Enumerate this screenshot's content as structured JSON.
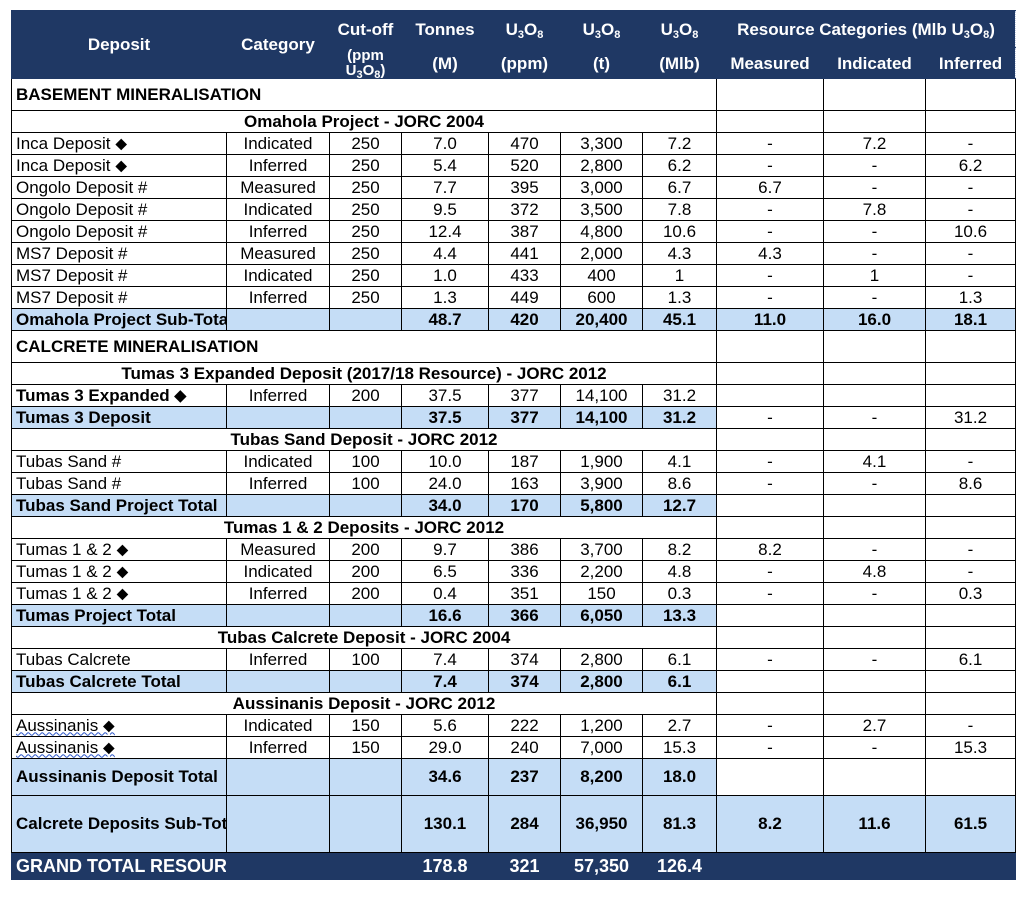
{
  "header": {
    "deposit": "Deposit",
    "category": "Category",
    "cutoff_top": "Cut-off",
    "cutoff_bottom": "(ppm U3O8)",
    "tonnes_top": "Tonnes",
    "tonnes_bottom": "(M)",
    "u3o8_a_top": "U3O8",
    "u3o8_a_bottom": "(ppm)",
    "u3o8_b_top": "U3O8",
    "u3o8_b_bottom": "(t)",
    "u3o8_c_top": "U3O8",
    "u3o8_c_bottom": "(Mlb)",
    "resource_categories": "Resource Categories (Mlb U3O8)",
    "measured": "Measured",
    "indicated": "Indicated",
    "inferred": "Inferred"
  },
  "rows": [
    {
      "type": "section",
      "label": "BASEMENT MINERALISATION"
    },
    {
      "type": "project",
      "label": "Omahola Project - JORC 2004"
    },
    {
      "type": "data",
      "deposit": "Inca Deposit ⬥",
      "category": "Indicated",
      "cutoff": "250",
      "tonnes": "7.0",
      "ppm": "470",
      "t": "3,300",
      "mlb": "7.2",
      "measured": "-",
      "indicated": "7.2",
      "inferred": "-"
    },
    {
      "type": "data",
      "deposit": "Inca Deposit ⬥",
      "category": "Inferred",
      "cutoff": "250",
      "tonnes": "5.4",
      "ppm": "520",
      "t": "2,800",
      "mlb": "6.2",
      "measured": "-",
      "indicated": "-",
      "inferred": "6.2"
    },
    {
      "type": "data",
      "deposit": "Ongolo Deposit #",
      "category": "Measured",
      "cutoff": "250",
      "tonnes": "7.7",
      "ppm": "395",
      "t": "3,000",
      "mlb": "6.7",
      "measured": "6.7",
      "indicated": "-",
      "inferred": "-"
    },
    {
      "type": "data",
      "deposit": "Ongolo Deposit #",
      "category": "Indicated",
      "cutoff": "250",
      "tonnes": "9.5",
      "ppm": "372",
      "t": "3,500",
      "mlb": "7.8",
      "measured": "-",
      "indicated": "7.8",
      "inferred": "-"
    },
    {
      "type": "data",
      "deposit": "Ongolo Deposit #",
      "category": "Inferred",
      "cutoff": "250",
      "tonnes": "12.4",
      "ppm": "387",
      "t": "4,800",
      "mlb": "10.6",
      "measured": "-",
      "indicated": "-",
      "inferred": "10.6"
    },
    {
      "type": "data",
      "deposit": "MS7 Deposit #",
      "category": "Measured",
      "cutoff": "250",
      "tonnes": "4.4",
      "ppm": "441",
      "t": "2,000",
      "mlb": "4.3",
      "measured": "4.3",
      "indicated": "-",
      "inferred": "-"
    },
    {
      "type": "data",
      "deposit": "MS7 Deposit #",
      "category": "Indicated",
      "cutoff": "250",
      "tonnes": "1.0",
      "ppm": "433",
      "t": "400",
      "mlb": "1",
      "measured": "-",
      "indicated": "1",
      "inferred": "-"
    },
    {
      "type": "data",
      "deposit": "MS7 Deposit #",
      "category": "Inferred",
      "cutoff": "250",
      "tonnes": "1.3",
      "ppm": "449",
      "t": "600",
      "mlb": "1.3",
      "measured": "-",
      "indicated": "-",
      "inferred": "1.3"
    },
    {
      "type": "subtotal",
      "label": "Omahola Project Sub-Total",
      "tonnes": "48.7",
      "ppm": "420",
      "t": "20,400",
      "mlb": "45.1",
      "measured": "11.0",
      "indicated": "16.0",
      "inferred": "18.1",
      "shade_cats": true
    },
    {
      "type": "section",
      "label": "CALCRETE MINERALISATION"
    },
    {
      "type": "project",
      "label": "Tumas 3 Expanded Deposit (2017/18 Resource) - JORC 2012"
    },
    {
      "type": "data",
      "deposit": "Tumas 3 Expanded ⬥",
      "category": "Inferred",
      "cutoff": "200",
      "tonnes": "37.5",
      "ppm": "377",
      "t": "14,100",
      "mlb": "31.2",
      "measured": "",
      "indicated": "",
      "inferred": "",
      "bold_deposit": true
    },
    {
      "type": "subtotal",
      "label": "Tumas 3 Deposit",
      "tonnes": "37.5",
      "ppm": "377",
      "t": "14,100",
      "mlb": "31.2",
      "measured": "-",
      "indicated": "-",
      "inferred": "31.2",
      "shade_cats": false
    },
    {
      "type": "project",
      "label": "Tubas Sand Deposit - JORC 2012"
    },
    {
      "type": "data",
      "deposit": "Tubas Sand #",
      "category": "Indicated",
      "cutoff": "100",
      "tonnes": "10.0",
      "ppm": "187",
      "t": "1,900",
      "mlb": "4.1",
      "measured": "-",
      "indicated": "4.1",
      "inferred": "-"
    },
    {
      "type": "data",
      "deposit": "Tubas Sand #",
      "category": "Inferred",
      "cutoff": "100",
      "tonnes": "24.0",
      "ppm": "163",
      "t": "3,900",
      "mlb": "8.6",
      "measured": "-",
      "indicated": "-",
      "inferred": "8.6"
    },
    {
      "type": "subtotal",
      "label": "Tubas Sand Project Total",
      "tonnes": "34.0",
      "ppm": "170",
      "t": "5,800",
      "mlb": "12.7",
      "measured": "",
      "indicated": "",
      "inferred": "",
      "shade_cats": false
    },
    {
      "type": "project",
      "label": "Tumas 1 & 2 Deposits - JORC 2012"
    },
    {
      "type": "data",
      "deposit": "Tumas 1 & 2 ⬥",
      "category": "Measured",
      "cutoff": "200",
      "tonnes": "9.7",
      "ppm": "386",
      "t": "3,700",
      "mlb": "8.2",
      "measured": "8.2",
      "indicated": "-",
      "inferred": "-"
    },
    {
      "type": "data",
      "deposit": "Tumas 1 & 2 ⬥",
      "category": "Indicated",
      "cutoff": "200",
      "tonnes": "6.5",
      "ppm": "336",
      "t": "2,200",
      "mlb": "4.8",
      "measured": "-",
      "indicated": "4.8",
      "inferred": "-"
    },
    {
      "type": "data",
      "deposit": "Tumas 1 & 2 ⬥",
      "category": "Inferred",
      "cutoff": "200",
      "tonnes": "0.4",
      "ppm": "351",
      "t": "150",
      "mlb": "0.3",
      "measured": "-",
      "indicated": "-",
      "inferred": "0.3"
    },
    {
      "type": "subtotal",
      "label": "Tumas Project Total",
      "tonnes": "16.6",
      "ppm": "366",
      "t": "6,050",
      "mlb": "13.3",
      "measured": "",
      "indicated": "",
      "inferred": "",
      "shade_cats": false
    },
    {
      "type": "project",
      "label": "Tubas Calcrete Deposit - JORC 2004"
    },
    {
      "type": "data",
      "deposit": "Tubas Calcrete",
      "category": "Inferred",
      "cutoff": "100",
      "tonnes": "7.4",
      "ppm": "374",
      "t": "2,800",
      "mlb": "6.1",
      "measured": "-",
      "indicated": "-",
      "inferred": "6.1"
    },
    {
      "type": "subtotal",
      "label": "Tubas Calcrete Total",
      "tonnes": "7.4",
      "ppm": "374",
      "t": "2,800",
      "mlb": "6.1",
      "measured": "",
      "indicated": "",
      "inferred": "",
      "shade_cats": false
    },
    {
      "type": "project",
      "label": "Aussinanis Deposit - JORC 2012"
    },
    {
      "type": "data",
      "deposit": "Aussinanis ⬥",
      "category": "Indicated",
      "cutoff": "150",
      "tonnes": "5.6",
      "ppm": "222",
      "t": "1,200",
      "mlb": "2.7",
      "measured": "-",
      "indicated": "2.7",
      "inferred": "-",
      "wavy": true
    },
    {
      "type": "data",
      "deposit": "Aussinanis ⬥",
      "category": "Inferred",
      "cutoff": "150",
      "tonnes": "29.0",
      "ppm": "240",
      "t": "7,000",
      "mlb": "15.3",
      "measured": "-",
      "indicated": "-",
      "inferred": "15.3",
      "wavy": true
    },
    {
      "type": "subtotal",
      "label": "Aussinanis Deposit Total",
      "tonnes": "34.6",
      "ppm": "237",
      "t": "8,200",
      "mlb": "18.0",
      "measured": "",
      "indicated": "",
      "inferred": "",
      "shade_cats": false,
      "tall": true
    },
    {
      "type": "calc",
      "label": "Calcrete Deposits Sub-Total",
      "tonnes": "130.1",
      "ppm": "284",
      "t": "36,950",
      "mlb": "81.3",
      "measured": "8.2",
      "indicated": "11.6",
      "inferred": "61.5"
    },
    {
      "type": "grand",
      "label": "GRAND TOTAL RESOURCES",
      "tonnes": "178.8",
      "ppm": "321",
      "t": "57,350",
      "mlb": "126.4"
    }
  ],
  "colors": {
    "header_bg": "#1f3864",
    "subtotal_bg": "#c5ddf6"
  }
}
